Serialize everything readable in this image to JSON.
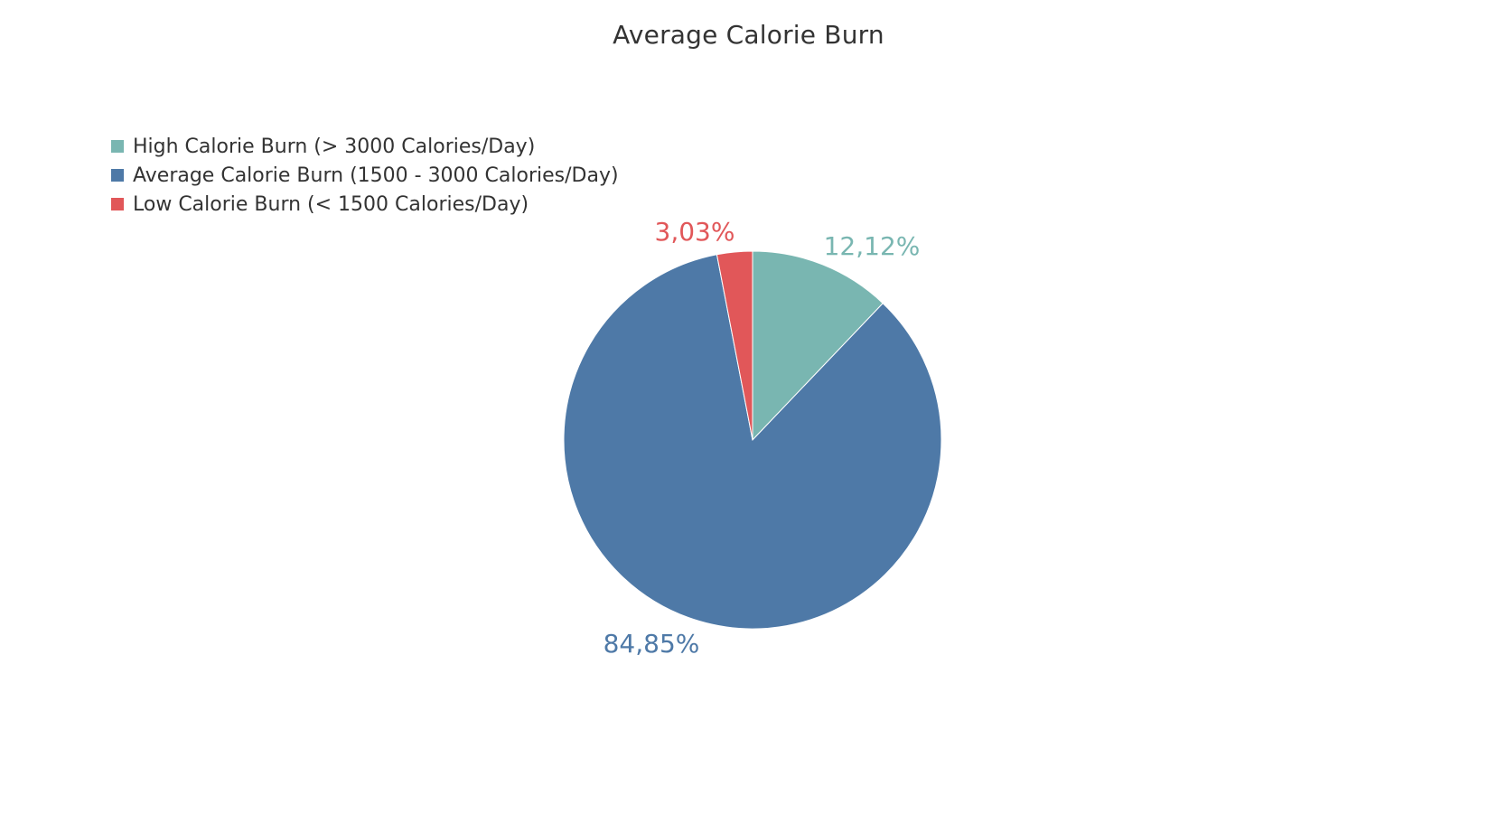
{
  "chart_data": {
    "type": "pie",
    "title": "Average Calorie Burn",
    "legend_position": "top-left",
    "slices": [
      {
        "name": "High Calorie Burn (> 3000 Calories/Day)",
        "value": 12.12,
        "label": "12,12%",
        "color": "#79b6b1"
      },
      {
        "name": "Average Calorie Burn (1500 - 3000 Calories/Day)",
        "value": 84.85,
        "label": "84,85%",
        "color": "#4e79a7"
      },
      {
        "name": "Low Calorie Burn (< 1500 Calories/Day)",
        "value": 3.03,
        "label": "3,03%",
        "color": "#e15759"
      }
    ]
  }
}
